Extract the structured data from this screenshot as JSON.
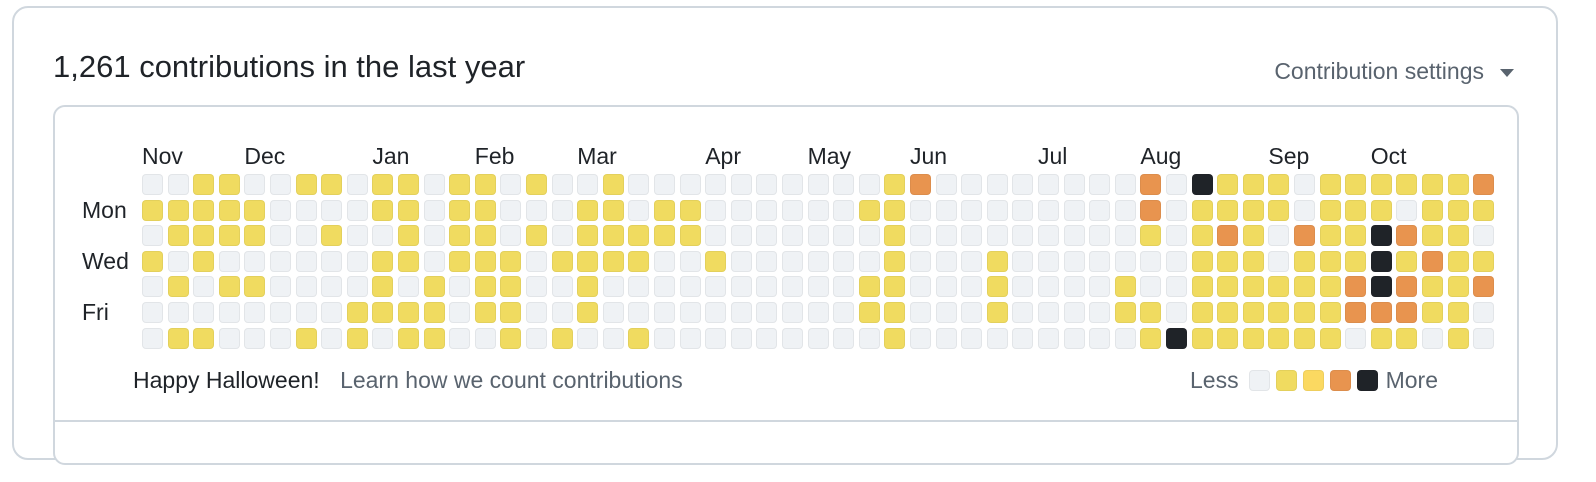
{
  "header": {
    "title": "1,261 contributions in the last year",
    "settings_label": "Contribution settings",
    "settings_icon": "caret-down-icon"
  },
  "calendar": {
    "months": [
      {
        "label": "Nov",
        "week": 0
      },
      {
        "label": "Dec",
        "week": 4
      },
      {
        "label": "Jan",
        "week": 9
      },
      {
        "label": "Feb",
        "week": 13
      },
      {
        "label": "Mar",
        "week": 17
      },
      {
        "label": "Apr",
        "week": 22
      },
      {
        "label": "May",
        "week": 26
      },
      {
        "label": "Jun",
        "week": 30
      },
      {
        "label": "Jul",
        "week": 35
      },
      {
        "label": "Aug",
        "week": 39
      },
      {
        "label": "Sep",
        "week": 44
      },
      {
        "label": "Oct",
        "week": 48
      }
    ],
    "days": [
      {
        "label": "Mon",
        "row": 1
      },
      {
        "label": "Wed",
        "row": 3
      },
      {
        "label": "Fri",
        "row": 5
      }
    ],
    "colors": [
      "#eff2f5",
      "#f0db60",
      "#fbd961",
      "#e8944f",
      "#1f2328"
    ],
    "levels": [
      [
        0,
        0,
        1,
        1,
        0,
        0,
        1,
        1,
        0,
        1,
        1,
        0,
        1,
        1,
        0,
        1,
        0,
        0,
        1,
        0,
        0,
        0,
        0,
        0,
        0,
        0,
        0,
        0,
        0,
        1,
        3,
        0,
        0,
        0,
        0,
        0,
        0,
        0,
        0,
        3,
        0,
        4,
        1,
        1,
        1,
        0,
        1,
        1,
        1,
        1,
        1,
        1,
        3
      ],
      [
        1,
        1,
        1,
        1,
        1,
        0,
        0,
        0,
        0,
        1,
        1,
        0,
        1,
        1,
        0,
        0,
        0,
        1,
        1,
        0,
        1,
        1,
        0,
        0,
        0,
        0,
        0,
        0,
        1,
        1,
        0,
        0,
        0,
        0,
        0,
        0,
        0,
        0,
        0,
        3,
        0,
        1,
        1,
        1,
        1,
        0,
        1,
        1,
        1,
        0,
        1,
        1,
        1
      ],
      [
        0,
        1,
        1,
        1,
        1,
        0,
        0,
        1,
        0,
        0,
        1,
        0,
        1,
        1,
        0,
        1,
        0,
        1,
        1,
        1,
        1,
        1,
        0,
        0,
        0,
        0,
        0,
        0,
        0,
        1,
        0,
        0,
        0,
        0,
        0,
        0,
        0,
        0,
        0,
        1,
        0,
        1,
        3,
        1,
        0,
        3,
        1,
        1,
        4,
        3,
        1,
        1,
        0
      ],
      [
        1,
        0,
        1,
        0,
        0,
        0,
        0,
        0,
        0,
        1,
        1,
        0,
        1,
        1,
        1,
        0,
        1,
        1,
        1,
        1,
        0,
        0,
        1,
        0,
        0,
        0,
        0,
        0,
        0,
        1,
        0,
        0,
        0,
        1,
        0,
        0,
        0,
        0,
        0,
        0,
        0,
        1,
        1,
        1,
        0,
        1,
        1,
        1,
        4,
        1,
        3,
        1,
        1
      ],
      [
        0,
        1,
        0,
        1,
        1,
        0,
        0,
        0,
        0,
        1,
        0,
        1,
        0,
        1,
        1,
        0,
        0,
        1,
        0,
        0,
        0,
        0,
        0,
        0,
        0,
        0,
        0,
        0,
        1,
        1,
        0,
        0,
        0,
        1,
        0,
        0,
        0,
        0,
        1,
        0,
        0,
        1,
        1,
        1,
        1,
        1,
        1,
        3,
        4,
        3,
        1,
        1,
        3
      ],
      [
        0,
        0,
        0,
        0,
        0,
        0,
        0,
        0,
        1,
        1,
        1,
        1,
        0,
        1,
        1,
        0,
        0,
        1,
        0,
        0,
        0,
        0,
        0,
        0,
        0,
        0,
        0,
        0,
        1,
        1,
        0,
        0,
        0,
        1,
        0,
        0,
        0,
        0,
        1,
        1,
        0,
        1,
        1,
        1,
        1,
        1,
        1,
        3,
        3,
        3,
        1,
        1,
        0
      ],
      [
        0,
        1,
        1,
        0,
        0,
        0,
        1,
        0,
        1,
        0,
        1,
        1,
        0,
        0,
        1,
        0,
        1,
        0,
        0,
        1,
        0,
        0,
        0,
        0,
        0,
        0,
        0,
        0,
        0,
        1,
        0,
        0,
        0,
        0,
        0,
        0,
        0,
        0,
        0,
        1,
        4,
        1,
        1,
        1,
        1,
        1,
        1,
        0,
        1,
        1,
        0,
        1,
        0
      ]
    ]
  },
  "footer": {
    "message": "Happy Halloween!",
    "link": "Learn how we count contributions",
    "legend_less": "Less",
    "legend_more": "More"
  }
}
